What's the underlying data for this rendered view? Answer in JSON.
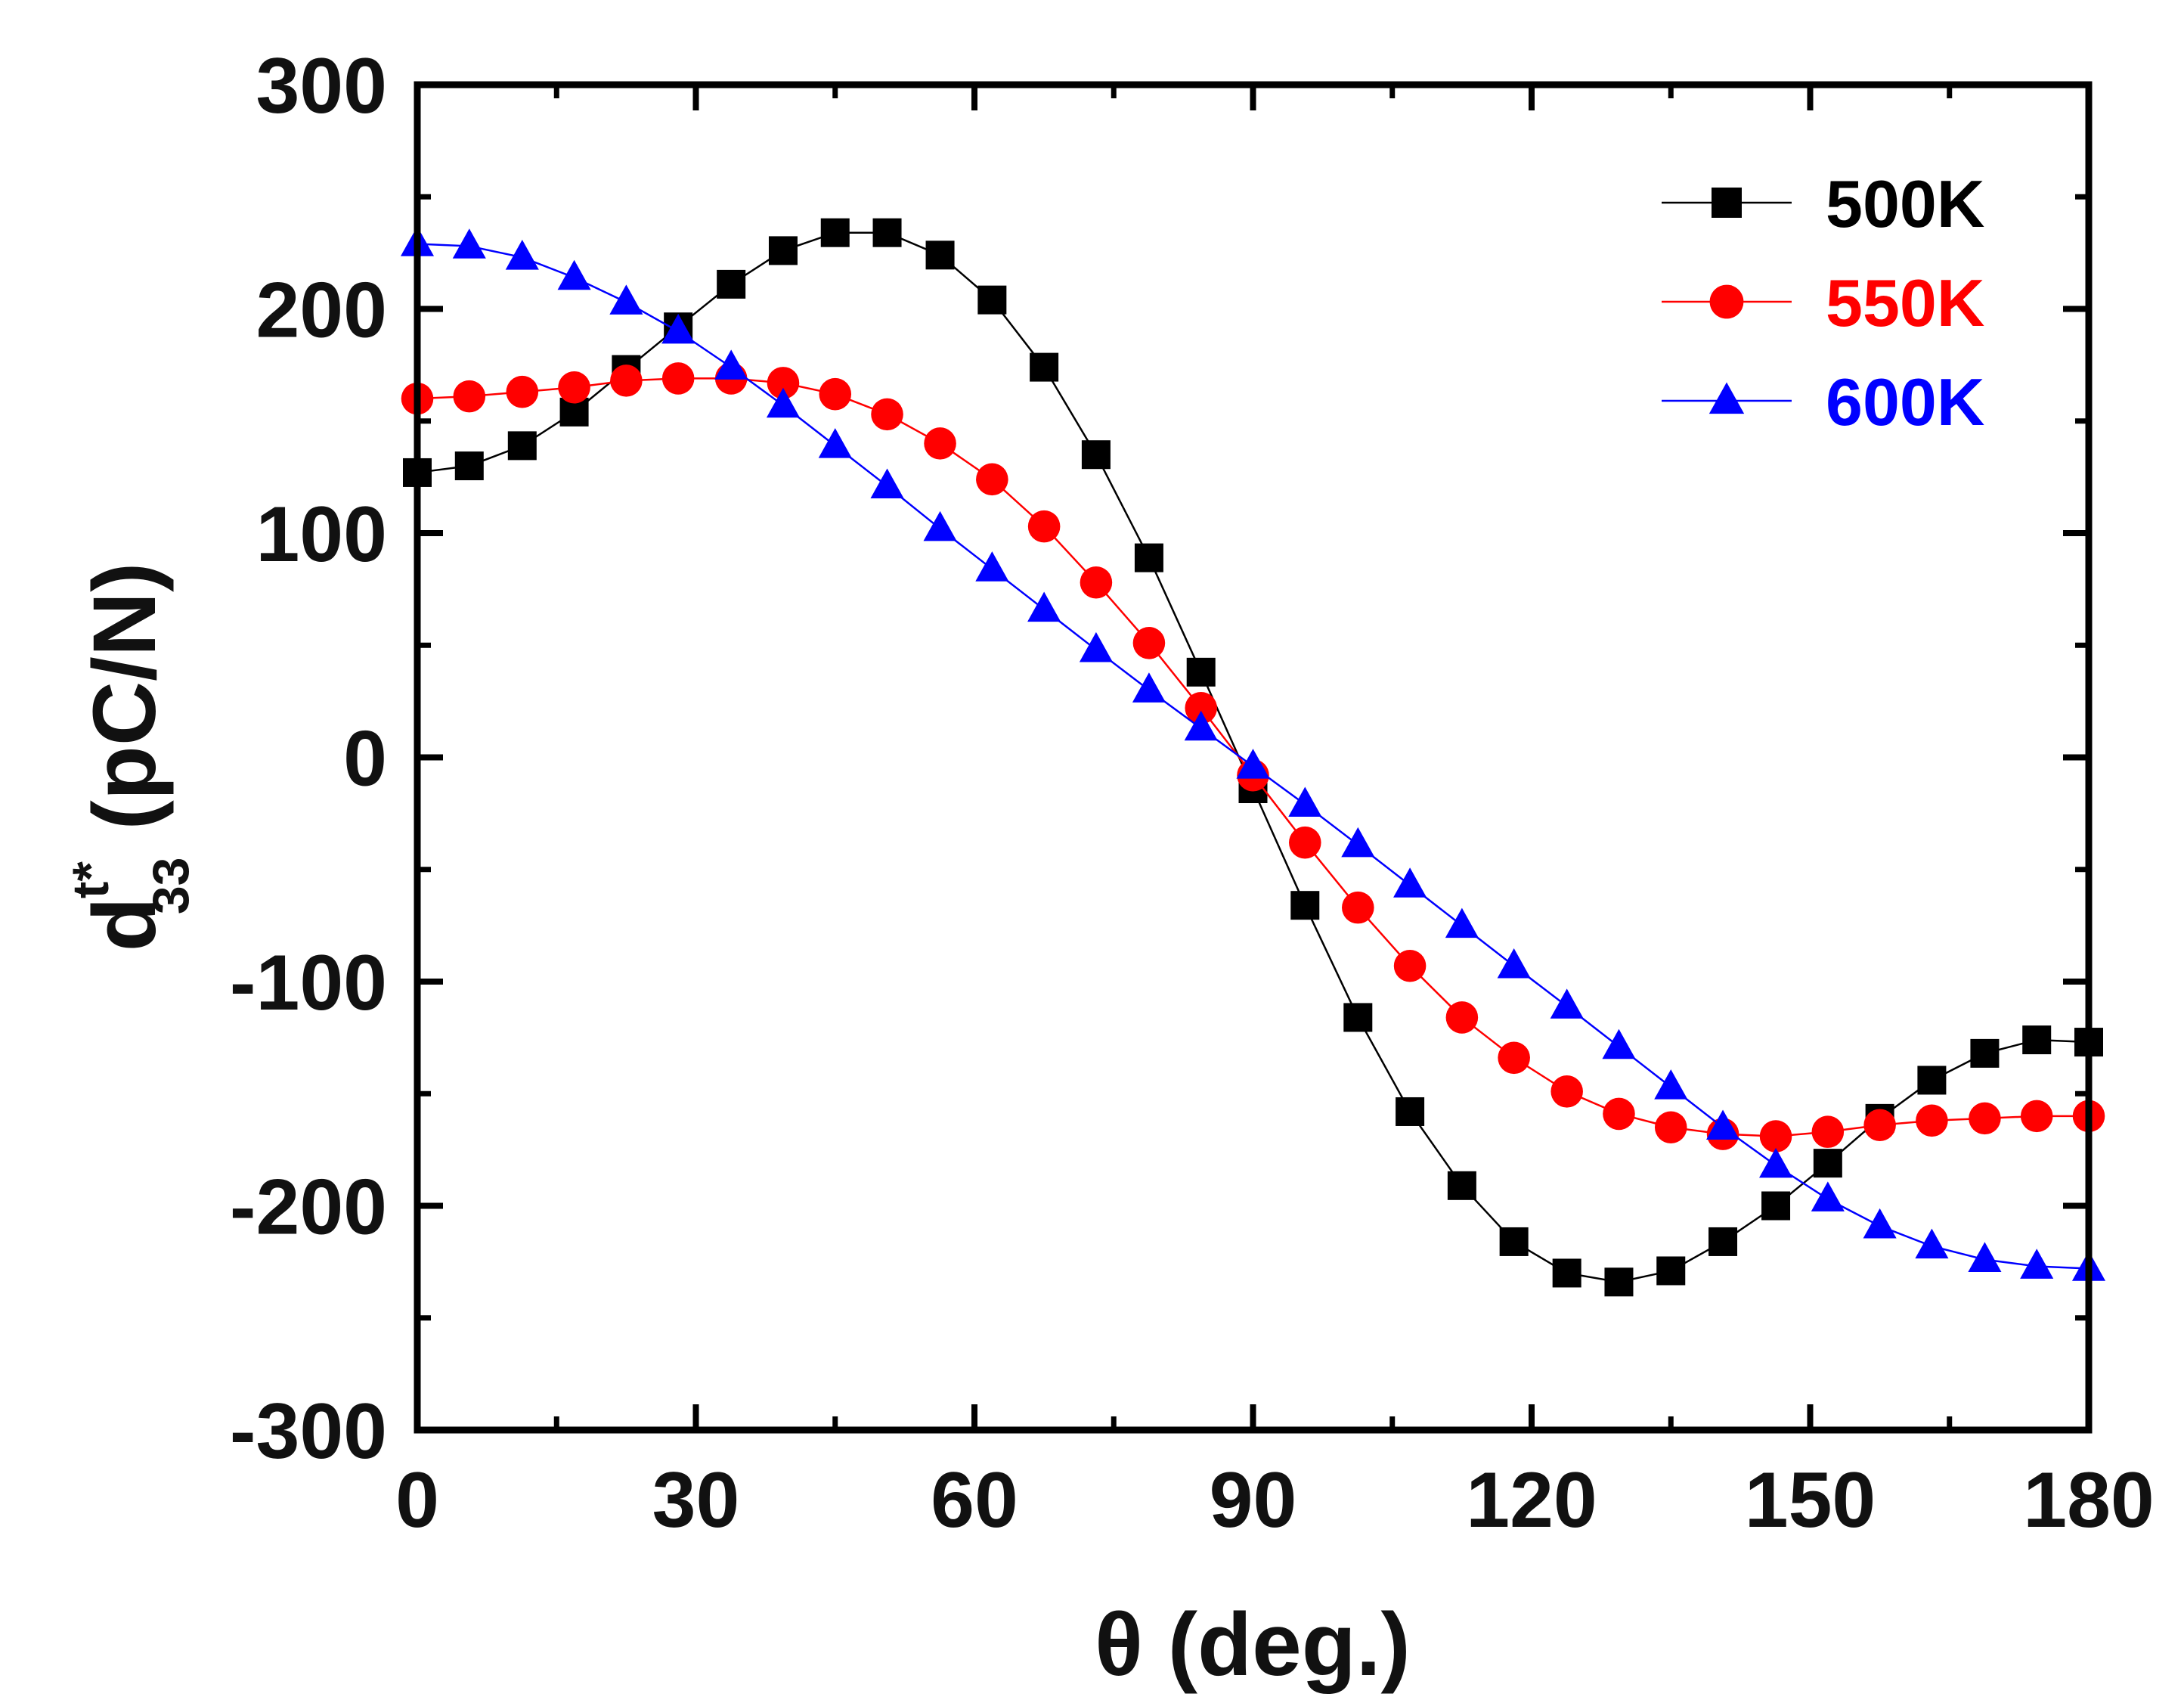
{
  "chart_data": {
    "type": "line",
    "title": "",
    "xlabel": "θ (deg.)",
    "ylabel_main": "d",
    "ylabel_sup": "t*",
    "ylabel_sub": "33",
    "ylabel_units": "(pC/N)",
    "xlim": [
      0,
      180
    ],
    "ylim": [
      -300,
      300
    ],
    "xticks": [
      0,
      30,
      60,
      90,
      120,
      150,
      180
    ],
    "xtick_labels": [
      "0",
      "30",
      "60",
      "90",
      "120",
      "150",
      "180"
    ],
    "yticks": [
      -300,
      -200,
      -100,
      0,
      100,
      200,
      300
    ],
    "ytick_labels": [
      "-300",
      "-200",
      "-100",
      "0",
      "100",
      "200",
      "300"
    ],
    "legend_position": "top-right",
    "grid": false,
    "x": [
      0,
      5.6,
      11.3,
      16.9,
      22.5,
      28.1,
      33.8,
      39.4,
      45,
      50.6,
      56.3,
      61.9,
      67.5,
      73.1,
      78.8,
      84.4,
      90,
      95.6,
      101.3,
      106.9,
      112.5,
      118.1,
      123.8,
      129.4,
      135,
      140.6,
      146.3,
      151.9,
      157.5,
      163.1,
      168.8,
      174.4,
      180
    ],
    "series": [
      {
        "name": "500K",
        "color": "#000000",
        "marker": "square",
        "values": [
          127,
          130,
          139,
          154,
          173,
          192,
          211,
          226,
          234,
          234,
          224,
          204,
          174,
          135,
          89,
          38,
          -14,
          -66,
          -116,
          -158,
          -191,
          -216,
          -230,
          -234,
          -229,
          -216,
          -200,
          -181,
          -161,
          -144,
          -132,
          -126,
          -127
        ]
      },
      {
        "name": "550K",
        "color": "#ff0000",
        "marker": "circle",
        "values": [
          160,
          161,
          163,
          165,
          168,
          169,
          169,
          167,
          162,
          153,
          140,
          124,
          103,
          78,
          51,
          22,
          -8,
          -38,
          -67,
          -93,
          -116,
          -134,
          -149,
          -159,
          -165,
          -168,
          -169,
          -167,
          -164,
          -162,
          -161,
          -160,
          -160
        ]
      },
      {
        "name": "600K",
        "color": "#0000ff",
        "marker": "triangle",
        "values": [
          229,
          228,
          223,
          214,
          203,
          190,
          174,
          157,
          139,
          121,
          102,
          84,
          66,
          48,
          30,
          13,
          -4,
          -21,
          -39,
          -57,
          -75,
          -93,
          -111,
          -129,
          -147,
          -165,
          -182,
          -197,
          -209,
          -218,
          -224,
          -227,
          -228
        ]
      }
    ]
  }
}
